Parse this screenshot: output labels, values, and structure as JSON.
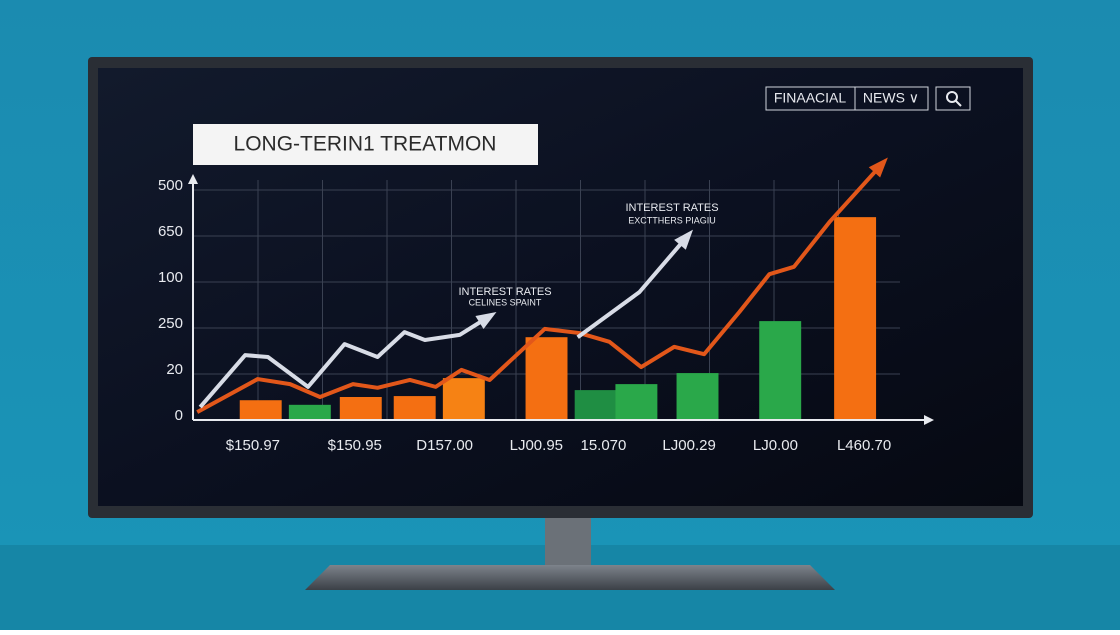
{
  "header": {
    "brand": "FINAACIAL",
    "menu": "NEWS ∨"
  },
  "chart_data": {
    "type": "bar",
    "title": "LONG-TERIN1 TREATMON",
    "xlim": [
      0,
      12.3
    ],
    "ylim": [
      0,
      5
    ],
    "yticks": [
      {
        "value": 0,
        "label": "0"
      },
      {
        "value": 1,
        "label": "20"
      },
      {
        "value": 2,
        "label": "250"
      },
      {
        "value": 3,
        "label": "100"
      },
      {
        "value": 4,
        "label": "650"
      },
      {
        "value": 5,
        "label": "500"
      }
    ],
    "xticks": [
      {
        "value": 1.0,
        "label": "$150.97"
      },
      {
        "value": 2.7,
        "label": "$150.95"
      },
      {
        "value": 4.2,
        "label": "D157.00"
      },
      {
        "value": 5.73,
        "label": "LJ00.95"
      },
      {
        "value": 6.85,
        "label": "15.070"
      },
      {
        "value": 8.28,
        "label": "LJ00.29"
      },
      {
        "value": 9.72,
        "label": "LJ0.00"
      },
      {
        "value": 11.2,
        "label": "L460.70"
      }
    ],
    "x": [
      1.13,
      1.95,
      2.8,
      3.7,
      4.52,
      5.9,
      6.72,
      7.4,
      8.42,
      9.8,
      11.05
    ],
    "values": [
      0.43,
      0.33,
      0.5,
      0.52,
      0.91,
      1.8,
      0.65,
      0.78,
      1.02,
      2.15,
      4.41
    ],
    "colors": [
      "#f46f12",
      "#2aa84a",
      "#f46f12",
      "#f46f12",
      "#f68214",
      "#f46f12",
      "#1f8e43",
      "#2aa84a",
      "#2aa84a",
      "#2aa84a",
      "#f46f12"
    ],
    "series": [
      {
        "type": "line",
        "color": "#e2571a",
        "x": [
          0.07,
          1.08,
          1.62,
          2.12,
          2.67,
          3.08,
          3.62,
          4.05,
          4.48,
          4.95,
          5.87,
          6.45,
          6.95,
          7.48,
          8.03,
          8.53,
          9.12,
          9.62,
          10.03,
          10.62,
          11.53
        ],
        "values": [
          0.17,
          0.89,
          0.78,
          0.5,
          0.78,
          0.7,
          0.87,
          0.72,
          1.09,
          0.87,
          1.98,
          1.89,
          1.7,
          1.15,
          1.59,
          1.43,
          2.35,
          3.17,
          3.33,
          4.3,
          5.61
        ]
      },
      {
        "type": "line",
        "color": "#d8dce6",
        "x": [
          0.12,
          0.87,
          1.25,
          1.92,
          2.53,
          3.08,
          3.53,
          3.87,
          4.45,
          4.98,
          null,
          6.42,
          7.45,
          8.28
        ],
        "values": [
          0.28,
          1.41,
          1.37,
          0.72,
          1.65,
          1.37,
          1.91,
          1.74,
          1.85,
          2.28,
          null,
          1.8,
          2.78,
          4.04
        ]
      }
    ],
    "annotations": [
      [
        "INTEREST RATES",
        "CELINES SPAINT"
      ],
      [
        "INTEREST RATES",
        "EXCTTHERS PIAGIU"
      ]
    ]
  }
}
